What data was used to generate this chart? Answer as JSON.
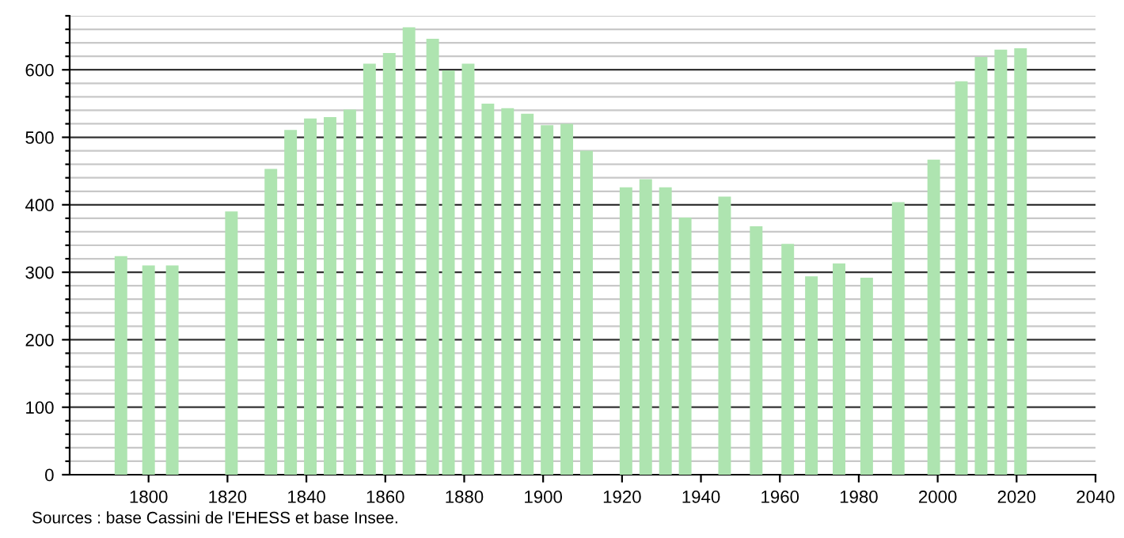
{
  "chart_data": {
    "type": "bar",
    "color": "#aee4b0",
    "x": [
      1793,
      1800,
      1806,
      1821,
      1831,
      1836,
      1841,
      1846,
      1851,
      1856,
      1861,
      1866,
      1872,
      1876,
      1881,
      1886,
      1891,
      1896,
      1901,
      1906,
      1911,
      1921,
      1926,
      1931,
      1936,
      1946,
      1954,
      1962,
      1968,
      1975,
      1982,
      1990,
      1999,
      2006,
      2011,
      2016,
      2021
    ],
    "values": [
      324,
      310,
      310,
      390,
      453,
      511,
      528,
      530,
      541,
      609,
      625,
      663,
      646,
      599,
      609,
      550,
      543,
      535,
      518,
      520,
      480,
      426,
      438,
      426,
      381,
      412,
      368,
      342,
      294,
      313,
      292,
      404,
      467,
      583,
      619,
      630,
      632
    ],
    "xlim": [
      1780,
      2040
    ],
    "xticks": [
      1800,
      1820,
      1840,
      1860,
      1880,
      1900,
      1920,
      1940,
      1960,
      1980,
      2000,
      2020,
      2040
    ],
    "ylim": [
      0,
      680
    ],
    "yticks": [
      0,
      {
        "value": 20,
        "label": null
      },
      {
        "value": 40,
        "label": null
      },
      {
        "value": 60,
        "label": null
      },
      {
        "value": 80,
        "label": null
      },
      100,
      {
        "value": 120,
        "label": null
      },
      {
        "value": 140,
        "label": null
      },
      {
        "value": 160,
        "label": null
      },
      {
        "value": 180,
        "label": null
      },
      200,
      {
        "value": 220,
        "label": null
      },
      {
        "value": 240,
        "label": null
      },
      {
        "value": 260,
        "label": null
      },
      {
        "value": 280,
        "label": null
      },
      300,
      {
        "value": 320,
        "label": null
      },
      {
        "value": 340,
        "label": null
      },
      {
        "value": 360,
        "label": null
      },
      {
        "value": 380,
        "label": null
      },
      400,
      {
        "value": 420,
        "label": null
      },
      {
        "value": 440,
        "label": null
      },
      {
        "value": 460,
        "label": null
      },
      {
        "value": 480,
        "label": null
      },
      500,
      {
        "value": 520,
        "label": null
      },
      {
        "value": 540,
        "label": null
      },
      {
        "value": 560,
        "label": null
      },
      {
        "value": 580,
        "label": null
      },
      600,
      {
        "value": 620,
        "label": null
      },
      {
        "value": 640,
        "label": null
      },
      {
        "value": 660,
        "label": null
      },
      {
        "value": 680,
        "label": null
      }
    ],
    "grid": "y",
    "annotations": [
      "Sources : base Cassini de l'EHESS et base Insee."
    ]
  }
}
